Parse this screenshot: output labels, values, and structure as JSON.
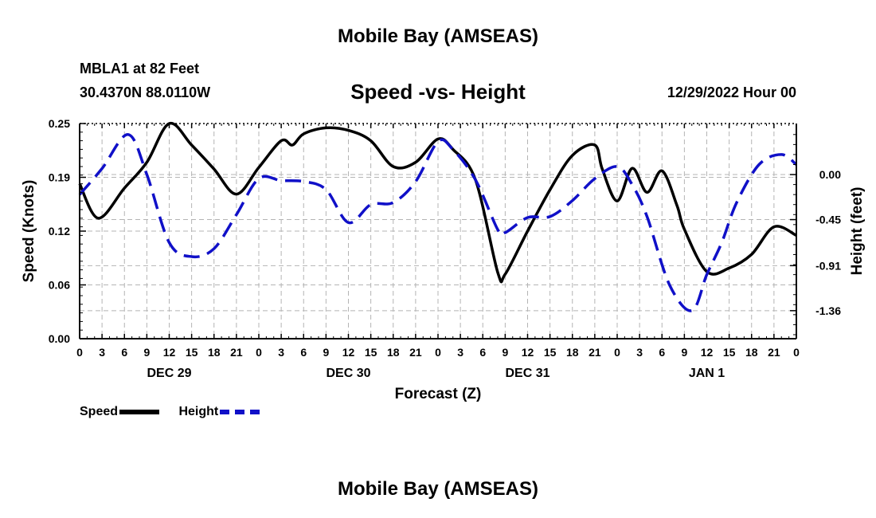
{
  "header": {
    "title": "Mobile Bay (AMSEAS)",
    "station": "MBLA1 at 82 Feet",
    "coords": "30.4370N  88.0110W",
    "subtitle": "Speed -vs- Height",
    "datetime": "12/29/2022 Hour 00"
  },
  "footer": {
    "second_title": "Mobile Bay (AMSEAS)"
  },
  "legend": {
    "speed_label": "Speed",
    "height_label": "Height"
  },
  "colors": {
    "speed": "#000000",
    "height": "#1010c8",
    "grid": "#b4b4b4"
  },
  "chart_data": {
    "type": "line",
    "title": "Speed -vs- Height",
    "xlabel": "Forecast (Z)",
    "ylabel_left": "Speed (Knots)",
    "ylabel_right": "Height (feet)",
    "grid": true,
    "legend_position": "bottom-left",
    "x_range_hours": [
      0,
      96
    ],
    "x_tick_labels": [
      "0",
      "3",
      "6",
      "9",
      "12",
      "15",
      "18",
      "21",
      "0",
      "3",
      "6",
      "9",
      "12",
      "15",
      "18",
      "21",
      "0",
      "3",
      "6",
      "9",
      "12",
      "15",
      "18",
      "21",
      "0",
      "3",
      "6",
      "9",
      "12",
      "15",
      "18",
      "21",
      "0"
    ],
    "day_labels": [
      {
        "text": "DEC 29",
        "hour": 12
      },
      {
        "text": "DEC 30",
        "hour": 36
      },
      {
        "text": "DEC 31",
        "hour": 60
      },
      {
        "text": "JAN 1",
        "hour": 84
      }
    ],
    "ylim_left": [
      0,
      0.25
    ],
    "yticks_left": [
      "0.00",
      "0.06",
      "0.12",
      "0.19",
      "0.25"
    ],
    "yticks_left_values": [
      0,
      0.0625,
      0.125,
      0.1875,
      0.25
    ],
    "ylim_right": [
      -1.64,
      0.51
    ],
    "yticks_right": [
      "-1.36",
      "-0.91",
      "-0.45",
      "0.00"
    ],
    "yticks_right_values": [
      -1.36,
      -0.91,
      -0.45,
      0.0
    ],
    "series": [
      {
        "name": "Speed",
        "axis": "left",
        "x": [
          0,
          2.5,
          6,
          9,
          12,
          15,
          18,
          21,
          24,
          27,
          28.5,
          30,
          33,
          36,
          39,
          42,
          45,
          48,
          50,
          53,
          56,
          57,
          60,
          63,
          66,
          69,
          70,
          72,
          74,
          76,
          78,
          80,
          81,
          84,
          87,
          90,
          93,
          96
        ],
        "values": [
          0.18,
          0.14,
          0.175,
          0.205,
          0.25,
          0.225,
          0.197,
          0.168,
          0.199,
          0.23,
          0.225,
          0.238,
          0.245,
          0.242,
          0.23,
          0.2,
          0.205,
          0.232,
          0.22,
          0.185,
          0.077,
          0.075,
          0.125,
          0.173,
          0.213,
          0.225,
          0.197,
          0.16,
          0.198,
          0.17,
          0.195,
          0.155,
          0.127,
          0.078,
          0.082,
          0.098,
          0.13,
          0.12
        ]
      },
      {
        "name": "Height",
        "axis": "right",
        "x": [
          0,
          3,
          6.5,
          9,
          12,
          15,
          18,
          21,
          24,
          27,
          30,
          33,
          36,
          39,
          42,
          45,
          48,
          50,
          53,
          56,
          57,
          60,
          63,
          66,
          69,
          72,
          74,
          76,
          79,
          82,
          84,
          86,
          88,
          91,
          94,
          96
        ],
        "values": [
          -0.2,
          0.06,
          0.4,
          0.0,
          -0.68,
          -0.82,
          -0.74,
          -0.4,
          -0.04,
          -0.06,
          -0.07,
          -0.15,
          -0.48,
          -0.3,
          -0.28,
          -0.07,
          0.33,
          0.25,
          -0.05,
          -0.55,
          -0.58,
          -0.43,
          -0.42,
          -0.26,
          -0.04,
          0.08,
          -0.1,
          -0.42,
          -1.1,
          -1.36,
          -1.0,
          -0.68,
          -0.28,
          0.1,
          0.2,
          0.1
        ]
      }
    ]
  }
}
